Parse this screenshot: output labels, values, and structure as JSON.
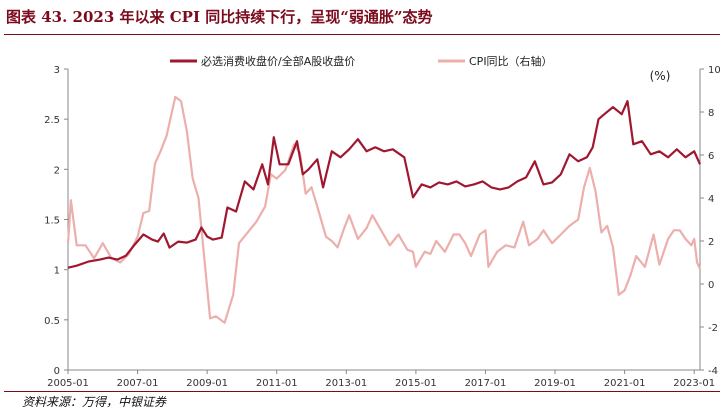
{
  "title": "图表 43. 2023 年以来 CPI 同比持续下行，呈现“弱通胀”态势",
  "source": "资料来源：万得，中银证券",
  "colors": {
    "title": "#7a0a1c",
    "series1": "#a01830",
    "series2": "#ecafac",
    "axis": "#888888"
  },
  "chart_data": {
    "type": "line",
    "unit_label": "(%)",
    "x_ticks": [
      "2005-01",
      "2007-01",
      "2009-01",
      "2011-01",
      "2013-01",
      "2015-01",
      "2017-01",
      "2019-01",
      "2021-01",
      "2023-01"
    ],
    "xlim": [
      "2005-01",
      "2023-03"
    ],
    "ylim_left": [
      0,
      3
    ],
    "yticks_left": [
      "0",
      "0.5",
      "1",
      "1.5",
      "2",
      "2.5",
      "3"
    ],
    "ylim_right": [
      -4,
      10
    ],
    "yticks_right": [
      "-4",
      "-2",
      "0",
      "2",
      "4",
      "6",
      "8",
      "10"
    ],
    "legend_position": "top-center",
    "series": [
      {
        "name": "必选消费收盘价/全部A股收盘价",
        "axis": "left",
        "color": "#a01830",
        "points": [
          [
            "2005-01",
            1.02
          ],
          [
            "2005-04",
            1.04
          ],
          [
            "2005-08",
            1.08
          ],
          [
            "2005-12",
            1.1
          ],
          [
            "2006-03",
            1.12
          ],
          [
            "2006-06",
            1.1
          ],
          [
            "2006-09",
            1.14
          ],
          [
            "2006-12",
            1.25
          ],
          [
            "2007-03",
            1.35
          ],
          [
            "2007-06",
            1.3
          ],
          [
            "2007-08",
            1.28
          ],
          [
            "2007-10",
            1.36
          ],
          [
            "2007-12",
            1.22
          ],
          [
            "2008-03",
            1.28
          ],
          [
            "2008-06",
            1.27
          ],
          [
            "2008-09",
            1.3
          ],
          [
            "2008-11",
            1.42
          ],
          [
            "2009-01",
            1.33
          ],
          [
            "2009-03",
            1.3
          ],
          [
            "2009-06",
            1.32
          ],
          [
            "2009-08",
            1.62
          ],
          [
            "2009-11",
            1.58
          ],
          [
            "2010-02",
            1.88
          ],
          [
            "2010-05",
            1.8
          ],
          [
            "2010-08",
            2.05
          ],
          [
            "2010-10",
            1.85
          ],
          [
            "2010-12",
            2.32
          ],
          [
            "2011-02",
            2.05
          ],
          [
            "2011-05",
            2.05
          ],
          [
            "2011-08",
            2.28
          ],
          [
            "2011-10",
            1.95
          ],
          [
            "2011-12",
            2.0
          ],
          [
            "2012-03",
            2.1
          ],
          [
            "2012-05",
            1.82
          ],
          [
            "2012-08",
            2.18
          ],
          [
            "2012-11",
            2.12
          ],
          [
            "2013-02",
            2.2
          ],
          [
            "2013-05",
            2.3
          ],
          [
            "2013-08",
            2.18
          ],
          [
            "2013-11",
            2.22
          ],
          [
            "2014-02",
            2.18
          ],
          [
            "2014-05",
            2.2
          ],
          [
            "2014-09",
            2.12
          ],
          [
            "2014-12",
            1.72
          ],
          [
            "2015-03",
            1.85
          ],
          [
            "2015-06",
            1.82
          ],
          [
            "2015-09",
            1.87
          ],
          [
            "2015-12",
            1.85
          ],
          [
            "2016-03",
            1.88
          ],
          [
            "2016-06",
            1.83
          ],
          [
            "2016-09",
            1.85
          ],
          [
            "2016-12",
            1.88
          ],
          [
            "2017-03",
            1.82
          ],
          [
            "2017-06",
            1.8
          ],
          [
            "2017-09",
            1.82
          ],
          [
            "2017-12",
            1.88
          ],
          [
            "2018-03",
            1.92
          ],
          [
            "2018-06",
            2.08
          ],
          [
            "2018-09",
            1.85
          ],
          [
            "2018-12",
            1.87
          ],
          [
            "2019-03",
            1.95
          ],
          [
            "2019-06",
            2.15
          ],
          [
            "2019-09",
            2.08
          ],
          [
            "2019-12",
            2.12
          ],
          [
            "2020-02",
            2.22
          ],
          [
            "2020-04",
            2.5
          ],
          [
            "2020-06",
            2.55
          ],
          [
            "2020-09",
            2.62
          ],
          [
            "2020-12",
            2.55
          ],
          [
            "2021-02",
            2.68
          ],
          [
            "2021-04",
            2.25
          ],
          [
            "2021-07",
            2.28
          ],
          [
            "2021-10",
            2.15
          ],
          [
            "2022-01",
            2.18
          ],
          [
            "2022-04",
            2.12
          ],
          [
            "2022-07",
            2.2
          ],
          [
            "2022-10",
            2.12
          ],
          [
            "2023-01",
            2.18
          ],
          [
            "2023-03",
            2.05
          ]
        ]
      },
      {
        "name": "CPI同比（右轴）",
        "axis": "right",
        "color": "#ecafac",
        "points": [
          [
            "2005-01",
            1.9
          ],
          [
            "2005-02",
            3.9
          ],
          [
            "2005-04",
            1.8
          ],
          [
            "2005-07",
            1.8
          ],
          [
            "2005-10",
            1.2
          ],
          [
            "2006-01",
            1.9
          ],
          [
            "2006-04",
            1.2
          ],
          [
            "2006-07",
            1.0
          ],
          [
            "2006-10",
            1.4
          ],
          [
            "2007-01",
            2.2
          ],
          [
            "2007-03",
            3.3
          ],
          [
            "2007-05",
            3.4
          ],
          [
            "2007-07",
            5.6
          ],
          [
            "2007-09",
            6.2
          ],
          [
            "2007-11",
            6.9
          ],
          [
            "2008-02",
            8.7
          ],
          [
            "2008-04",
            8.5
          ],
          [
            "2008-06",
            7.1
          ],
          [
            "2008-08",
            4.9
          ],
          [
            "2008-10",
            4.0
          ],
          [
            "2008-12",
            1.2
          ],
          [
            "2009-02",
            -1.6
          ],
          [
            "2009-04",
            -1.5
          ],
          [
            "2009-07",
            -1.8
          ],
          [
            "2009-10",
            -0.5
          ],
          [
            "2009-12",
            1.9
          ],
          [
            "2010-03",
            2.4
          ],
          [
            "2010-06",
            2.9
          ],
          [
            "2010-09",
            3.6
          ],
          [
            "2010-11",
            5.1
          ],
          [
            "2011-01",
            4.9
          ],
          [
            "2011-04",
            5.3
          ],
          [
            "2011-07",
            6.5
          ],
          [
            "2011-09",
            6.1
          ],
          [
            "2011-11",
            4.2
          ],
          [
            "2012-01",
            4.5
          ],
          [
            "2012-03",
            3.6
          ],
          [
            "2012-06",
            2.2
          ],
          [
            "2012-08",
            2.0
          ],
          [
            "2012-10",
            1.7
          ],
          [
            "2012-12",
            2.5
          ],
          [
            "2013-02",
            3.2
          ],
          [
            "2013-05",
            2.1
          ],
          [
            "2013-08",
            2.6
          ],
          [
            "2013-10",
            3.2
          ],
          [
            "2014-01",
            2.5
          ],
          [
            "2014-04",
            1.8
          ],
          [
            "2014-07",
            2.3
          ],
          [
            "2014-10",
            1.6
          ],
          [
            "2014-12",
            1.5
          ],
          [
            "2015-01",
            0.8
          ],
          [
            "2015-04",
            1.5
          ],
          [
            "2015-06",
            1.4
          ],
          [
            "2015-08",
            2.0
          ],
          [
            "2015-11",
            1.5
          ],
          [
            "2016-02",
            2.3
          ],
          [
            "2016-04",
            2.3
          ],
          [
            "2016-06",
            1.9
          ],
          [
            "2016-08",
            1.3
          ],
          [
            "2016-11",
            2.3
          ],
          [
            "2017-01",
            2.5
          ],
          [
            "2017-02",
            0.8
          ],
          [
            "2017-05",
            1.5
          ],
          [
            "2017-08",
            1.8
          ],
          [
            "2017-11",
            1.7
          ],
          [
            "2018-02",
            2.9
          ],
          [
            "2018-04",
            1.8
          ],
          [
            "2018-07",
            2.1
          ],
          [
            "2018-09",
            2.5
          ],
          [
            "2018-12",
            1.9
          ],
          [
            "2019-03",
            2.3
          ],
          [
            "2019-06",
            2.7
          ],
          [
            "2019-09",
            3.0
          ],
          [
            "2019-11",
            4.5
          ],
          [
            "2020-01",
            5.4
          ],
          [
            "2020-03",
            4.3
          ],
          [
            "2020-05",
            2.4
          ],
          [
            "2020-07",
            2.7
          ],
          [
            "2020-09",
            1.7
          ],
          [
            "2020-11",
            -0.5
          ],
          [
            "2021-01",
            -0.3
          ],
          [
            "2021-03",
            0.4
          ],
          [
            "2021-05",
            1.3
          ],
          [
            "2021-08",
            0.8
          ],
          [
            "2021-11",
            2.3
          ],
          [
            "2022-01",
            0.9
          ],
          [
            "2022-04",
            2.1
          ],
          [
            "2022-06",
            2.5
          ],
          [
            "2022-08",
            2.5
          ],
          [
            "2022-10",
            2.1
          ],
          [
            "2022-12",
            1.8
          ],
          [
            "2023-01",
            2.1
          ],
          [
            "2023-02",
            1.0
          ],
          [
            "2023-03",
            0.7
          ]
        ]
      }
    ]
  }
}
